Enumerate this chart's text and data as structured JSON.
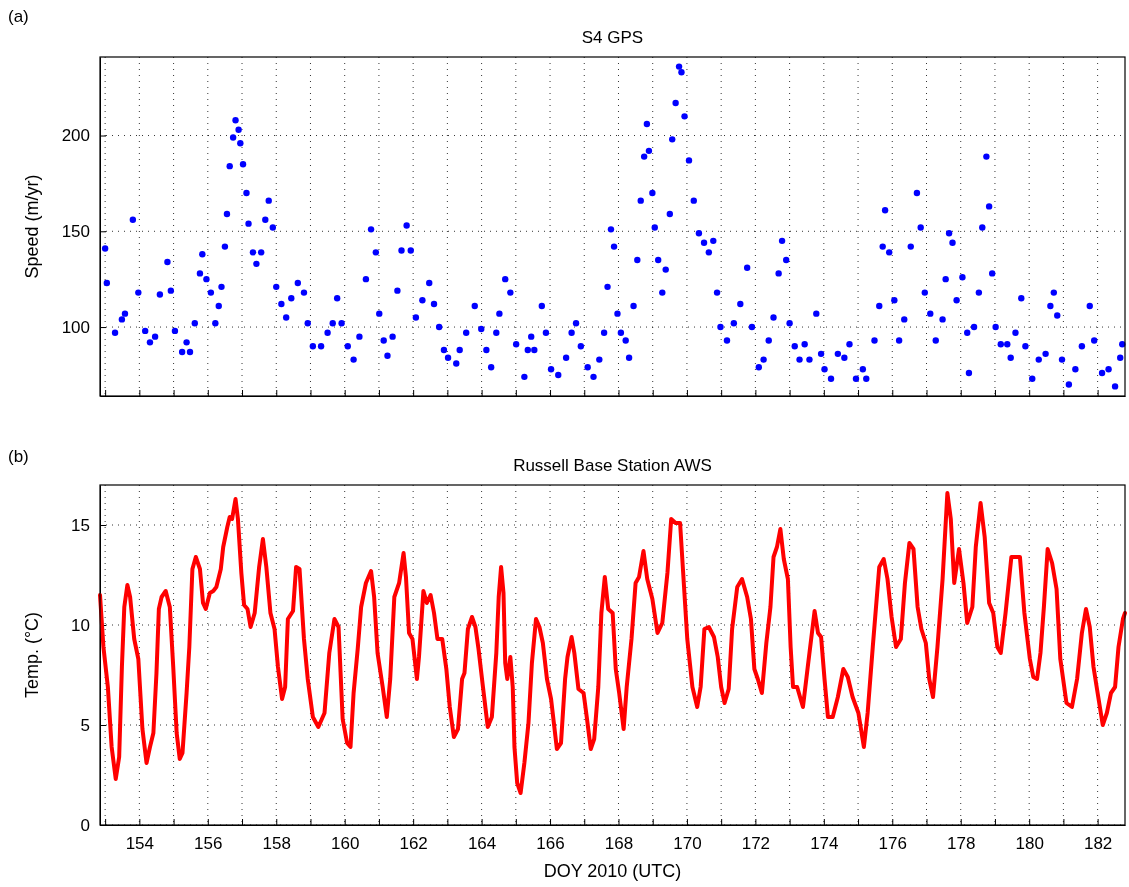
{
  "chart_data": [
    {
      "type": "scatter",
      "title": "S4 GPS",
      "ylabel": "Speed (m/yr)",
      "annotations": [
        "(a)"
      ],
      "color": "#0000ff",
      "marker": "circle",
      "grid": true,
      "tick_labels": "y",
      "xlim": [
        152.85,
        182.8
      ],
      "ylim": [
        64,
        241
      ],
      "yticks": [
        100,
        150,
        200
      ],
      "xticks": [
        {
          "value": 153,
          "label": null
        },
        154,
        {
          "value": 155,
          "label": null
        },
        156,
        {
          "value": 157,
          "label": null
        },
        158,
        {
          "value": 159,
          "label": null
        },
        160,
        {
          "value": 161,
          "label": null
        },
        162,
        {
          "value": 163,
          "label": null
        },
        164,
        {
          "value": 165,
          "label": null
        },
        166,
        {
          "value": 167,
          "label": null
        },
        168,
        {
          "value": 169,
          "label": null
        },
        170,
        {
          "value": 171,
          "label": null
        },
        172,
        {
          "value": 173,
          "label": null
        },
        174,
        {
          "value": 175,
          "label": null
        },
        176,
        {
          "value": 177,
          "label": null
        },
        178,
        {
          "value": 179,
          "label": null
        },
        180,
        {
          "value": 181,
          "label": null
        },
        182
      ],
      "x": [
        153.0,
        153.05,
        153.29,
        153.49,
        153.58,
        153.81,
        153.97,
        154.17,
        154.31,
        154.46,
        154.6,
        154.82,
        154.92,
        155.04,
        155.25,
        155.38,
        155.48,
        155.62,
        155.77,
        155.84,
        155.96,
        156.09,
        156.22,
        156.32,
        156.4,
        156.5,
        156.56,
        156.64,
        156.74,
        156.81,
        156.9,
        156.95,
        157.03,
        157.13,
        157.19,
        157.32,
        157.42,
        157.56,
        157.68,
        157.78,
        157.9,
        158.0,
        158.15,
        158.29,
        158.44,
        158.63,
        158.81,
        158.92,
        159.07,
        159.31,
        159.5,
        159.65,
        159.78,
        159.91,
        160.09,
        160.26,
        160.43,
        160.62,
        160.77,
        160.91,
        161.01,
        161.14,
        161.25,
        161.4,
        161.54,
        161.66,
        161.81,
        161.93,
        162.08,
        162.27,
        162.47,
        162.61,
        162.76,
        162.9,
        163.02,
        163.26,
        163.36,
        163.55,
        163.8,
        163.99,
        164.14,
        164.28,
        164.43,
        164.52,
        164.69,
        164.84,
        165.01,
        165.25,
        165.35,
        165.45,
        165.54,
        165.76,
        165.88,
        166.03,
        166.24,
        166.47,
        166.63,
        166.76,
        166.9,
        167.1,
        167.27,
        167.44,
        167.58,
        167.68,
        167.78,
        167.87,
        167.97,
        168.07,
        168.21,
        168.31,
        168.44,
        168.55,
        168.65,
        168.75,
        168.83,
        168.89,
        168.99,
        169.06,
        169.16,
        169.28,
        169.38,
        169.5,
        169.57,
        169.67,
        169.77,
        169.84,
        169.93,
        170.06,
        170.2,
        170.35,
        170.5,
        170.64,
        170.77,
        170.88,
        170.98,
        171.17,
        171.37,
        171.56,
        171.76,
        171.9,
        172.1,
        172.24,
        172.39,
        172.53,
        172.68,
        172.78,
        172.9,
        173.0,
        173.15,
        173.29,
        173.44,
        173.58,
        173.78,
        173.92,
        174.02,
        174.21,
        174.41,
        174.6,
        174.75,
        174.94,
        175.14,
        175.24,
        175.48,
        175.62,
        175.72,
        175.79,
        175.91,
        176.06,
        176.2,
        176.35,
        176.54,
        176.72,
        176.83,
        176.95,
        177.11,
        177.27,
        177.47,
        177.56,
        177.66,
        177.76,
        177.88,
        178.05,
        178.19,
        178.24,
        178.39,
        178.53,
        178.63,
        178.75,
        178.83,
        178.92,
        179.02,
        179.17,
        179.36,
        179.46,
        179.6,
        179.77,
        179.89,
        180.09,
        180.28,
        180.48,
        180.62,
        180.72,
        180.82,
        180.96,
        181.16,
        181.35,
        181.54,
        181.77,
        181.9,
        182.13,
        182.32,
        182.51,
        182.66,
        182.72
      ],
      "values": [
        141,
        123,
        97,
        104,
        107,
        156,
        118,
        98,
        92,
        95,
        117,
        134,
        119,
        98,
        87,
        92,
        87,
        102,
        128,
        138,
        125,
        118,
        102,
        111,
        121,
        142,
        159,
        184,
        199,
        208,
        203,
        196,
        185,
        170,
        154,
        139,
        133,
        139,
        156,
        166,
        152,
        121,
        112,
        105,
        115,
        123,
        118,
        102,
        90,
        90,
        97,
        102,
        115,
        102,
        90,
        83,
        95,
        125,
        151,
        139,
        107,
        93,
        85,
        95,
        119,
        140,
        153,
        140,
        105,
        114,
        123,
        112,
        100,
        88,
        84,
        81,
        88,
        97,
        111,
        99,
        88,
        79,
        97,
        107,
        125,
        118,
        91,
        74,
        88,
        95,
        88,
        111,
        97,
        78,
        75,
        84,
        97,
        102,
        90,
        79,
        74,
        83,
        97,
        121,
        151,
        142,
        107,
        97,
        93,
        84,
        111,
        135,
        166,
        189,
        206,
        192,
        170,
        152,
        135,
        118,
        130,
        159,
        198,
        217,
        236,
        233,
        210,
        187,
        166,
        149,
        144,
        139,
        145,
        118,
        100,
        93,
        102,
        112,
        131,
        100,
        79,
        83,
        93,
        105,
        128,
        145,
        135,
        102,
        90,
        83,
        91,
        83,
        107,
        86,
        78,
        73,
        86,
        84,
        91,
        73,
        78,
        73,
        93,
        111,
        142,
        161,
        139,
        114,
        93,
        104,
        142,
        170,
        152,
        118,
        107,
        93,
        104,
        125,
        149,
        144,
        114,
        126,
        97,
        76,
        100,
        118,
        152,
        189,
        163,
        128,
        100,
        91,
        91,
        84,
        97,
        115,
        90,
        73,
        83,
        86,
        111,
        118,
        106,
        83,
        70,
        78,
        90,
        111,
        93,
        76,
        78,
        69,
        84,
        91
      ]
    },
    {
      "type": "line",
      "title": "Russell Base Station AWS",
      "ylabel": "Temp. (°C)",
      "xlabel": "DOY 2010 (UTC)",
      "annotations": [
        "(b)"
      ],
      "color": "#ff0000",
      "grid": true,
      "xlim": [
        152.85,
        182.8
      ],
      "ylim": [
        0,
        17
      ],
      "yticks": [
        0,
        5,
        10,
        15
      ],
      "xticks": [
        {
          "value": 153,
          "label": null
        },
        154,
        {
          "value": 155,
          "label": null
        },
        156,
        {
          "value": 157,
          "label": null
        },
        158,
        {
          "value": 159,
          "label": null
        },
        160,
        {
          "value": 161,
          "label": null
        },
        162,
        {
          "value": 163,
          "label": null
        },
        164,
        {
          "value": 165,
          "label": null
        },
        166,
        {
          "value": 167,
          "label": null
        },
        168,
        {
          "value": 169,
          "label": null
        },
        170,
        {
          "value": 171,
          "label": null
        },
        172,
        {
          "value": 173,
          "label": null
        },
        174,
        {
          "value": 175,
          "label": null
        },
        176,
        {
          "value": 177,
          "label": null
        },
        178,
        {
          "value": 179,
          "label": null
        },
        180,
        {
          "value": 181,
          "label": null
        },
        182
      ],
      "x": [
        152.85,
        152.95,
        153.08,
        153.19,
        153.31,
        153.41,
        153.49,
        153.56,
        153.65,
        153.73,
        153.85,
        153.97,
        154.09,
        154.21,
        154.31,
        154.41,
        154.5,
        154.57,
        154.65,
        154.77,
        154.89,
        154.99,
        155.09,
        155.18,
        155.26,
        155.38,
        155.46,
        155.55,
        155.65,
        155.77,
        155.86,
        155.94,
        156.06,
        156.16,
        156.25,
        156.38,
        156.45,
        156.57,
        156.64,
        156.71,
        156.81,
        156.88,
        156.98,
        157.06,
        157.16,
        157.25,
        157.37,
        157.5,
        157.61,
        157.71,
        157.83,
        157.95,
        158.05,
        158.17,
        158.26,
        158.34,
        158.49,
        158.58,
        158.68,
        158.81,
        158.92,
        159.07,
        159.23,
        159.41,
        159.55,
        159.7,
        159.82,
        159.94,
        160.07,
        160.17,
        160.26,
        160.38,
        160.48,
        160.62,
        160.77,
        160.86,
        160.96,
        161.11,
        161.23,
        161.33,
        161.45,
        161.59,
        161.72,
        161.79,
        161.88,
        161.98,
        162.11,
        162.17,
        162.3,
        162.4,
        162.51,
        162.61,
        162.71,
        162.85,
        162.97,
        163.07,
        163.19,
        163.31,
        163.43,
        163.5,
        163.6,
        163.72,
        163.82,
        163.91,
        164.04,
        164.18,
        164.3,
        164.43,
        164.5,
        164.57,
        164.64,
        164.69,
        164.75,
        164.84,
        164.91,
        164.96,
        165.04,
        165.14,
        165.25,
        165.37,
        165.47,
        165.59,
        165.69,
        165.79,
        165.91,
        166.03,
        166.2,
        166.32,
        166.44,
        166.51,
        166.63,
        166.71,
        166.83,
        166.98,
        167.08,
        167.19,
        167.29,
        167.41,
        167.5,
        167.6,
        167.7,
        167.83,
        167.92,
        168.02,
        168.15,
        168.24,
        168.38,
        168.5,
        168.6,
        168.73,
        168.84,
        168.99,
        169.14,
        169.28,
        169.43,
        169.54,
        169.67,
        169.8,
        169.89,
        170.01,
        170.16,
        170.3,
        170.4,
        170.51,
        170.64,
        170.79,
        170.9,
        171.0,
        171.1,
        171.22,
        171.32,
        171.47,
        171.61,
        171.76,
        171.87,
        171.97,
        172.07,
        172.19,
        172.32,
        172.44,
        172.53,
        172.63,
        172.73,
        172.83,
        172.95,
        173.03,
        173.1,
        173.22,
        173.39,
        173.53,
        173.73,
        173.83,
        173.92,
        174.02,
        174.12,
        174.26,
        174.41,
        174.57,
        174.7,
        174.84,
        175.01,
        175.17,
        175.28,
        175.43,
        175.62,
        175.75,
        175.86,
        175.98,
        176.11,
        176.25,
        176.37,
        176.5,
        176.62,
        176.74,
        176.85,
        176.98,
        177.08,
        177.19,
        177.32,
        177.47,
        177.61,
        177.71,
        177.81,
        177.95,
        178.08,
        178.19,
        178.34,
        178.44,
        178.58,
        178.7,
        178.83,
        178.95,
        179.07,
        179.17,
        179.31,
        179.48,
        179.73,
        179.86,
        180.02,
        180.12,
        180.23,
        180.33,
        180.43,
        180.54,
        180.67,
        180.8,
        180.91,
        181.09,
        181.25,
        181.4,
        181.54,
        181.66,
        181.77,
        181.88,
        182.0,
        182.15,
        182.27,
        182.39,
        182.51,
        182.61,
        182.74,
        182.8
      ],
      "values": [
        11.5,
        8.9,
        6.9,
        3.9,
        2.3,
        3.4,
        7.9,
        10.9,
        12.0,
        11.4,
        9.3,
        8.3,
        4.8,
        3.1,
        3.9,
        4.6,
        7.6,
        10.8,
        11.4,
        11.7,
        10.9,
        7.9,
        4.6,
        3.3,
        3.6,
        6.6,
        8.9,
        12.8,
        13.4,
        12.8,
        11.1,
        10.8,
        11.6,
        11.7,
        11.9,
        12.8,
        13.9,
        14.9,
        15.4,
        15.3,
        16.3,
        15.3,
        12.6,
        11.0,
        10.8,
        9.9,
        10.6,
        12.9,
        14.3,
        12.9,
        10.6,
        9.8,
        7.9,
        6.3,
        6.9,
        10.3,
        10.7,
        12.9,
        12.8,
        9.3,
        7.3,
        5.4,
        4.9,
        5.6,
        8.6,
        10.3,
        9.9,
        5.3,
        4.1,
        3.9,
        6.6,
        8.8,
        10.9,
        12.1,
        12.7,
        11.4,
        8.6,
        6.9,
        5.4,
        7.3,
        11.4,
        12.1,
        13.6,
        12.4,
        9.6,
        9.3,
        7.3,
        8.4,
        11.7,
        11.1,
        11.5,
        10.6,
        9.3,
        9.3,
        7.8,
        5.9,
        4.4,
        4.8,
        7.3,
        7.6,
        9.8,
        10.4,
        9.9,
        8.8,
        6.9,
        4.9,
        5.4,
        8.6,
        11.4,
        12.9,
        11.6,
        8.1,
        7.3,
        8.4,
        6.9,
        3.9,
        2.1,
        1.6,
        3.1,
        5.1,
        8.1,
        10.3,
        9.9,
        9.1,
        7.3,
        6.3,
        3.8,
        4.1,
        7.3,
        8.4,
        9.4,
        8.6,
        6.8,
        6.6,
        5.3,
        3.8,
        4.3,
        6.9,
        10.6,
        12.4,
        10.8,
        10.6,
        7.8,
        6.6,
        4.8,
        6.9,
        9.3,
        12.1,
        12.4,
        13.7,
        12.3,
        11.3,
        9.6,
        10.1,
        12.6,
        15.3,
        15.1,
        15.1,
        12.6,
        9.3,
        6.9,
        5.9,
        6.9,
        9.8,
        9.9,
        9.4,
        8.4,
        6.9,
        6.1,
        6.8,
        9.8,
        11.9,
        12.3,
        11.4,
        10.3,
        7.8,
        7.3,
        6.6,
        9.1,
        10.9,
        13.4,
        13.9,
        14.8,
        13.3,
        12.3,
        8.9,
        6.9,
        6.9,
        5.9,
        7.9,
        10.7,
        9.6,
        9.4,
        7.3,
        5.4,
        5.4,
        6.4,
        7.8,
        7.4,
        6.4,
        5.6,
        3.9,
        5.6,
        8.9,
        12.9,
        13.3,
        12.3,
        10.4,
        8.9,
        9.3,
        12.1,
        14.1,
        13.8,
        10.9,
        9.8,
        9.1,
        7.3,
        6.4,
        8.9,
        12.3,
        16.6,
        15.3,
        12.1,
        13.8,
        12.1,
        10.1,
        10.9,
        13.9,
        16.1,
        14.4,
        11.1,
        10.6,
        8.9,
        8.6,
        10.6,
        13.4,
        13.4,
        10.6,
        8.3,
        7.4,
        7.3,
        8.6,
        10.9,
        13.8,
        13.1,
        11.8,
        8.3,
        6.1,
        5.9,
        7.3,
        9.6,
        10.8,
        9.9,
        7.9,
        6.6,
        5.0,
        5.6,
        6.6,
        6.9,
        8.9,
        10.3,
        10.6
      ]
    }
  ]
}
